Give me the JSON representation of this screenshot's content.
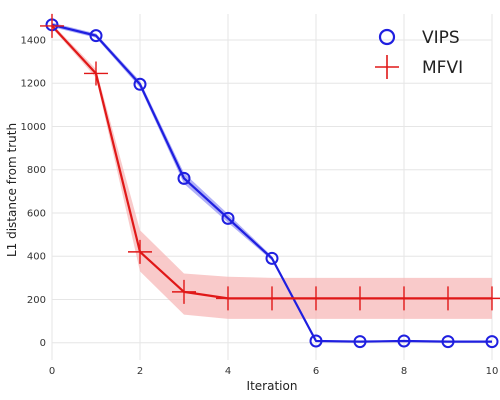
{
  "chart_data": {
    "type": "line",
    "xlabel": "Iteration",
    "ylabel": "L1 distance from truth",
    "xlim": [
      0,
      10
    ],
    "ylim": [
      -80,
      1520
    ],
    "x_ticks": [
      0,
      2,
      4,
      6,
      8,
      10
    ],
    "y_ticks": [
      0,
      200,
      400,
      600,
      800,
      1000,
      1200,
      1400
    ],
    "grid": true,
    "legend_position": "top-right",
    "series": [
      {
        "name": "VIPS",
        "marker": "circle",
        "color": "#1f1fe0",
        "band_color": "#6f6ff0",
        "x": [
          0,
          1,
          2,
          3,
          4,
          5,
          6,
          7,
          8,
          9,
          10
        ],
        "y": [
          1470,
          1420,
          1195,
          760,
          575,
          390,
          8,
          5,
          8,
          5,
          5
        ],
        "band_lower": [
          1460,
          1410,
          1180,
          735,
          555,
          380,
          5,
          3,
          5,
          3,
          3
        ],
        "band_upper": [
          1480,
          1430,
          1210,
          785,
          595,
          400,
          12,
          8,
          12,
          8,
          8
        ]
      },
      {
        "name": "MFVI",
        "marker": "plus",
        "color": "#e01818",
        "band_color": "#f7b3b3",
        "x": [
          0,
          1,
          2,
          3,
          4,
          5,
          6,
          7,
          8,
          9,
          10
        ],
        "y": [
          1465,
          1245,
          420,
          235,
          205,
          205,
          205,
          205,
          205,
          205,
          205
        ],
        "band_lower": [
          1455,
          1225,
          330,
          130,
          110,
          110,
          110,
          110,
          110,
          110,
          110
        ],
        "band_upper": [
          1475,
          1265,
          520,
          320,
          305,
          300,
          300,
          300,
          300,
          300,
          300
        ]
      }
    ]
  }
}
